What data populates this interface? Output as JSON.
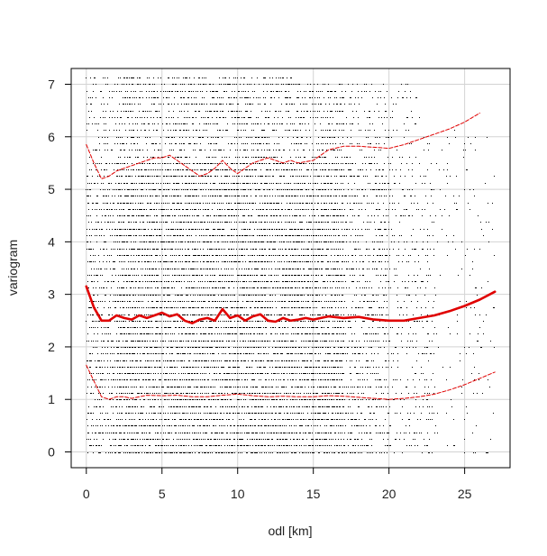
{
  "chart_data": {
    "type": "scatter",
    "xlabel": "odl [km]",
    "ylabel": "variogram",
    "xlim": [
      -1,
      28
    ],
    "ylim": [
      -0.3,
      7.3
    ],
    "xticks": [
      0,
      5,
      10,
      15,
      20,
      25
    ],
    "yticks": [
      0,
      1,
      2,
      3,
      4,
      5,
      6,
      7
    ],
    "grid": true,
    "colors": {
      "points": "#000000",
      "smooth": "#e00000",
      "grid": "#d3d3d3",
      "frame": "#000000"
    },
    "series": [
      {
        "kind": "scatter-cloud",
        "x_range": [
          0,
          27
        ],
        "y_range": [
          0,
          7.2
        ],
        "row_spacing": 0.125,
        "density": "very dense below x=17, thinning toward x=27"
      },
      {
        "kind": "smooth-line",
        "style": "solid-thick",
        "x": [
          0,
          0.5,
          1,
          1.5,
          2,
          2.5,
          3,
          3.5,
          4,
          4.5,
          5,
          5.5,
          6,
          6.5,
          7,
          7.5,
          8,
          8.5,
          9,
          9.5,
          10,
          10.5,
          11,
          11.5,
          12,
          12.5,
          13,
          13.5,
          14,
          14.5,
          15,
          16,
          17,
          18,
          19,
          20,
          21,
          22,
          23,
          24,
          25,
          26,
          27
        ],
        "y": [
          3.15,
          2.75,
          2.5,
          2.5,
          2.6,
          2.55,
          2.52,
          2.6,
          2.55,
          2.6,
          2.65,
          2.58,
          2.62,
          2.5,
          2.45,
          2.52,
          2.55,
          2.5,
          2.72,
          2.55,
          2.6,
          2.5,
          2.58,
          2.62,
          2.5,
          2.48,
          2.55,
          2.5,
          2.52,
          2.55,
          2.52,
          2.58,
          2.55,
          2.57,
          2.52,
          2.5,
          2.5,
          2.55,
          2.6,
          2.68,
          2.78,
          2.9,
          3.05
        ]
      },
      {
        "kind": "smooth-line",
        "style": "dashed-thin",
        "x": [
          0,
          0.5,
          1,
          1.5,
          2,
          2.5,
          3,
          3.5,
          4,
          4.5,
          5,
          5.5,
          6,
          6.5,
          7,
          7.5,
          8,
          8.5,
          9,
          9.5,
          10,
          10.5,
          11,
          11.5,
          12,
          12.5,
          13,
          13.5,
          14,
          15,
          16,
          17,
          18,
          19,
          20,
          21,
          22,
          23,
          24,
          25,
          26
        ],
        "y": [
          5.85,
          5.5,
          5.2,
          5.25,
          5.35,
          5.4,
          5.45,
          5.5,
          5.55,
          5.6,
          5.6,
          5.65,
          5.55,
          5.45,
          5.35,
          5.25,
          5.3,
          5.4,
          5.55,
          5.4,
          5.3,
          5.4,
          5.5,
          5.55,
          5.6,
          5.55,
          5.5,
          5.55,
          5.5,
          5.55,
          5.75,
          5.82,
          5.82,
          5.8,
          5.78,
          5.85,
          5.95,
          6.05,
          6.15,
          6.28,
          6.45
        ]
      },
      {
        "kind": "smooth-line",
        "style": "dashed-thin",
        "x": [
          0,
          0.5,
          1,
          1.5,
          2,
          2.5,
          3,
          3.5,
          4,
          5,
          6,
          7,
          8,
          9,
          10,
          11,
          12,
          13,
          14,
          15,
          16,
          17,
          18,
          19,
          20,
          21,
          22,
          23,
          24,
          25,
          26,
          27
        ],
        "y": [
          1.65,
          1.35,
          1.05,
          1.0,
          1.05,
          1.05,
          1.02,
          1.05,
          1.08,
          1.07,
          1.08,
          1.05,
          1.05,
          1.08,
          1.1,
          1.07,
          1.05,
          1.06,
          1.05,
          1.05,
          1.07,
          1.06,
          1.04,
          1.02,
          1.0,
          1.02,
          1.05,
          1.1,
          1.18,
          1.28,
          1.4,
          1.52
        ]
      }
    ]
  }
}
